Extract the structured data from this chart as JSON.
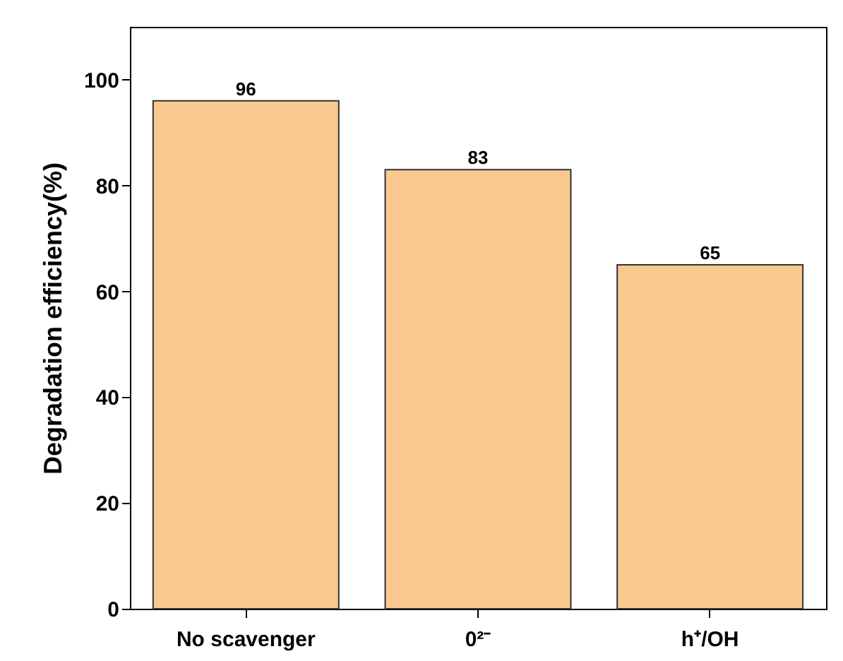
{
  "chart_data": {
    "type": "bar",
    "ylabel": "Degradation efficiency(%)",
    "categories": [
      "No scavenger",
      "0²⁻",
      "h⁺/OH"
    ],
    "values": [
      96,
      83,
      65
    ],
    "color": "#f9c98f",
    "ylim": [
      0,
      110
    ],
    "yticks": [
      0,
      20,
      40,
      60,
      80,
      100
    ],
    "data_labels": true
  }
}
